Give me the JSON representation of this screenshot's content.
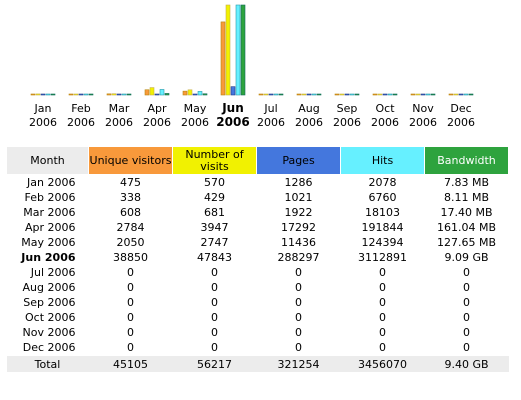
{
  "colors": {
    "unique_visitors": "#f8993b",
    "visits": "#f1f101",
    "pages": "#4477dd",
    "hits": "#66f0ff",
    "bandwidth": "#2ea33e",
    "month_header": "#ececec",
    "total_row": "#ececec"
  },
  "chart_data": {
    "type": "bar",
    "categories": [
      "Jan",
      "Feb",
      "Mar",
      "Apr",
      "May",
      "Jun",
      "Jul",
      "Aug",
      "Sep",
      "Oct",
      "Nov",
      "Dec"
    ],
    "year": "2006",
    "current_index": 5,
    "series": [
      {
        "name": "Unique visitors",
        "color": "#f8993b",
        "values": [
          475,
          338,
          608,
          2784,
          2050,
          38850,
          0,
          0,
          0,
          0,
          0,
          0
        ]
      },
      {
        "name": "Number of visits",
        "color": "#f1f101",
        "values": [
          570,
          429,
          681,
          3947,
          2747,
          47843,
          0,
          0,
          0,
          0,
          0,
          0
        ]
      },
      {
        "name": "Pages",
        "color": "#4477dd",
        "values": [
          1286,
          1021,
          1922,
          17292,
          11436,
          288297,
          0,
          0,
          0,
          0,
          0,
          0
        ]
      },
      {
        "name": "Hits",
        "color": "#66f0ff",
        "values": [
          2078,
          6760,
          18103,
          191844,
          124394,
          3112891,
          0,
          0,
          0,
          0,
          0,
          0
        ]
      },
      {
        "name": "Bandwidth",
        "color": "#2ea33e",
        "values": [
          7.83,
          8.11,
          17.4,
          161.04,
          127.65,
          9307.16,
          0,
          0,
          0,
          0,
          0,
          0
        ],
        "unit": "MB"
      }
    ],
    "title": "",
    "xlabel": "",
    "ylabel": ""
  },
  "table": {
    "headers": {
      "month": "Month",
      "unique_visitors": "Unique visitors",
      "visits": "Number of visits",
      "pages": "Pages",
      "hits": "Hits",
      "bandwidth": "Bandwidth"
    },
    "rows": [
      {
        "month": "Jan 2006",
        "unique_visitors": "475",
        "visits": "570",
        "pages": "1286",
        "hits": "2078",
        "bandwidth": "7.83 MB"
      },
      {
        "month": "Feb 2006",
        "unique_visitors": "338",
        "visits": "429",
        "pages": "1021",
        "hits": "6760",
        "bandwidth": "8.11 MB"
      },
      {
        "month": "Mar 2006",
        "unique_visitors": "608",
        "visits": "681",
        "pages": "1922",
        "hits": "18103",
        "bandwidth": "17.40 MB"
      },
      {
        "month": "Apr 2006",
        "unique_visitors": "2784",
        "visits": "3947",
        "pages": "17292",
        "hits": "191844",
        "bandwidth": "161.04 MB"
      },
      {
        "month": "May 2006",
        "unique_visitors": "2050",
        "visits": "2747",
        "pages": "11436",
        "hits": "124394",
        "bandwidth": "127.65 MB"
      },
      {
        "month": "Jun 2006",
        "unique_visitors": "38850",
        "visits": "47843",
        "pages": "288297",
        "hits": "3112891",
        "bandwidth": "9.09 GB",
        "current": true
      },
      {
        "month": "Jul 2006",
        "unique_visitors": "0",
        "visits": "0",
        "pages": "0",
        "hits": "0",
        "bandwidth": "0"
      },
      {
        "month": "Aug 2006",
        "unique_visitors": "0",
        "visits": "0",
        "pages": "0",
        "hits": "0",
        "bandwidth": "0"
      },
      {
        "month": "Sep 2006",
        "unique_visitors": "0",
        "visits": "0",
        "pages": "0",
        "hits": "0",
        "bandwidth": "0"
      },
      {
        "month": "Oct 2006",
        "unique_visitors": "0",
        "visits": "0",
        "pages": "0",
        "hits": "0",
        "bandwidth": "0"
      },
      {
        "month": "Nov 2006",
        "unique_visitors": "0",
        "visits": "0",
        "pages": "0",
        "hits": "0",
        "bandwidth": "0"
      },
      {
        "month": "Dec 2006",
        "unique_visitors": "0",
        "visits": "0",
        "pages": "0",
        "hits": "0",
        "bandwidth": "0"
      }
    ],
    "total": {
      "label": "Total",
      "unique_visitors": "45105",
      "visits": "56217",
      "pages": "321254",
      "hits": "3456070",
      "bandwidth": "9.40 GB"
    }
  }
}
